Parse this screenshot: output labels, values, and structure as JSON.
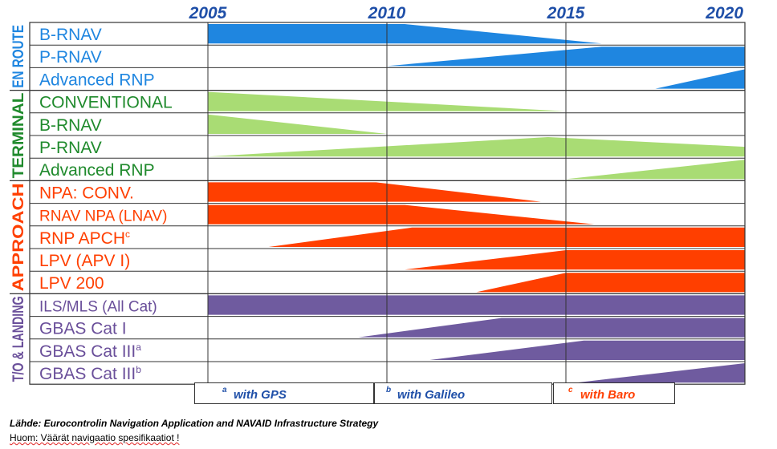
{
  "chart_data": {
    "type": "area",
    "x_ticks": [
      "2005",
      "2010",
      "2015",
      "2020"
    ],
    "xlim": [
      2005,
      2020
    ],
    "groups": [
      {
        "name": "EN ROUTE",
        "color": "#1f86e0",
        "rows": [
          0,
          2
        ]
      },
      {
        "name": "TERMINAL",
        "color": "#1f8a2c",
        "rows": [
          3,
          6
        ]
      },
      {
        "name": "APPROACH",
        "color": "#ff3f00",
        "rows": [
          7,
          11
        ]
      },
      {
        "name": "T/O & LANDING",
        "color": "#6a4f9a",
        "rows": [
          12,
          15
        ]
      }
    ],
    "series": [
      {
        "label": "B-RNAV",
        "sup": "",
        "text_color": "#1f86e0",
        "fill": "#1f86e0",
        "shape": "decline",
        "start": 2005,
        "plateau_end": 2010.5,
        "end": 2016
      },
      {
        "label": "P-RNAV",
        "sup": "",
        "text_color": "#1f86e0",
        "fill": "#1f86e0",
        "shape": "rise",
        "start": 2010,
        "full": 2016,
        "end": 2020
      },
      {
        "label": "Advanced RNP",
        "sup": "",
        "text_color": "#1f86e0",
        "fill": "#1f86e0",
        "shape": "rise",
        "start": 2017.5,
        "full": 2020,
        "end": 2020
      },
      {
        "label": "CONVENTIONAL",
        "sup": "",
        "text_color": "#1f8a2c",
        "fill": "#a9dc74",
        "shape": "decline",
        "start": 2005,
        "plateau_end": 2005,
        "end": 2015
      },
      {
        "label": "B-RNAV",
        "sup": "",
        "text_color": "#1f8a2c",
        "fill": "#a9dc74",
        "shape": "decline",
        "start": 2005,
        "plateau_end": 2005,
        "end": 2010
      },
      {
        "label": "P-RNAV",
        "sup": "",
        "text_color": "#1f8a2c",
        "fill": "#a9dc74",
        "shape": "hump",
        "start": 2005,
        "full": 2014.5,
        "end": 2020
      },
      {
        "label": "Advanced RNP",
        "sup": "",
        "text_color": "#1f8a2c",
        "fill": "#a9dc74",
        "shape": "rise",
        "start": 2015,
        "full": 2020,
        "end": 2020
      },
      {
        "label": "NPA: CONV.",
        "sup": "",
        "text_color": "#ff3f00",
        "fill": "#ff3f00",
        "shape": "decline",
        "start": 2005,
        "plateau_end": 2009.7,
        "end": 2014.3
      },
      {
        "label": "RNAV NPA (LNAV)",
        "sup": "",
        "text_color": "#ff3f00",
        "fill": "#ff3f00",
        "shape": "decline",
        "start": 2005,
        "plateau_end": 2010.5,
        "end": 2015.8
      },
      {
        "label": "RNP APCH",
        "sup": "c",
        "text_color": "#ff3f00",
        "fill": "#ff3f00",
        "shape": "rise",
        "start": 2006.7,
        "full": 2010.7,
        "end": 2020
      },
      {
        "label": "LPV (APV I)",
        "sup": "",
        "text_color": "#ff3f00",
        "fill": "#ff3f00",
        "shape": "rise",
        "start": 2010.5,
        "full": 2015,
        "end": 2020
      },
      {
        "label": "LPV 200",
        "sup": "",
        "text_color": "#ff3f00",
        "fill": "#ff3f00",
        "shape": "rise",
        "start": 2012.5,
        "full": 2015,
        "end": 2020
      },
      {
        "label": "ILS/MLS (All Cat)",
        "sup": "",
        "text_color": "#6a4f9a",
        "fill": "#6f5b9f",
        "shape": "full",
        "start": 2005,
        "end": 2020
      },
      {
        "label": "GBAS Cat I",
        "sup": "",
        "text_color": "#6a4f9a",
        "fill": "#6f5b9f",
        "shape": "rise",
        "start": 2009.2,
        "full": 2013.2,
        "end": 2020
      },
      {
        "label": "GBAS Cat III",
        "sup": "a",
        "text_color": "#6a4f9a",
        "fill": "#6f5b9f",
        "shape": "rise",
        "start": 2011.2,
        "full": 2015.5,
        "end": 2020
      },
      {
        "label": "GBAS Cat III",
        "sup": "b",
        "text_color": "#6a4f9a",
        "fill": "#6f5b9f",
        "shape": "rise",
        "start": 2015.3,
        "full": 2020,
        "end": 2020
      }
    ],
    "legend": [
      {
        "sup": "a",
        "text": "with GPS",
        "color": "#1f4fa8"
      },
      {
        "sup": "b",
        "text": "with Galileo",
        "color": "#1f4fa8"
      },
      {
        "sup": "c",
        "text": "with Baro",
        "color": "#ff3f00"
      }
    ]
  },
  "footer": {
    "source": "Lähde: Eurocontrolin Navigation Application and NAVAID Infrastructure Strategy",
    "note": "Huom: Väärät navigaatio spesifikaatiot !"
  }
}
